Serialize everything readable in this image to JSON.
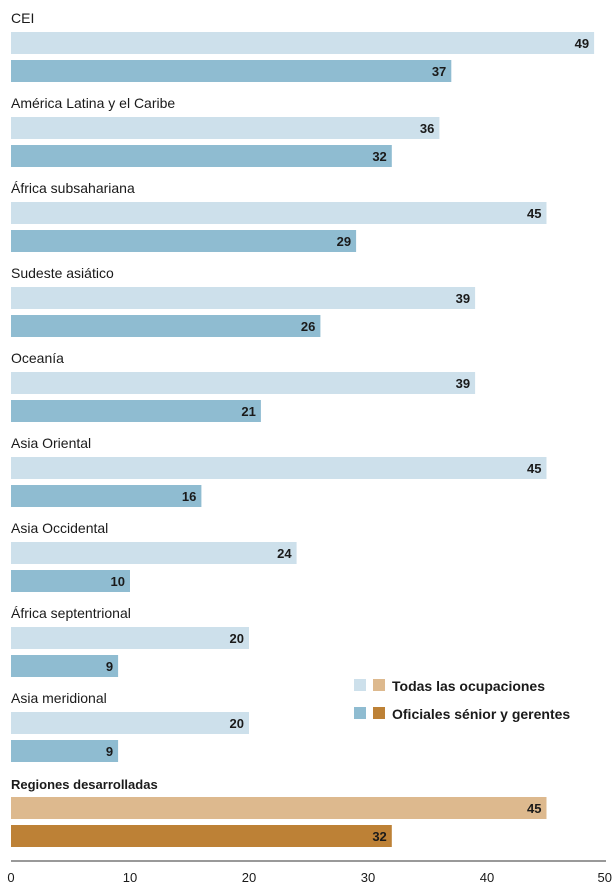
{
  "chart_data": {
    "type": "bar",
    "orientation": "horizontal",
    "categories": [
      "CEI",
      "América Latina y el Caribe",
      "África subsahariana",
      "Sudeste asiático",
      "Oceanía",
      "Asia Oriental",
      "Asia Occidental",
      "África septentrional",
      "Asia meridional",
      "Regiones desarrolladas"
    ],
    "series": [
      {
        "name": "Todas las ocupaciones",
        "values": [
          49,
          36,
          45,
          39,
          39,
          45,
          24,
          20,
          20,
          45
        ]
      },
      {
        "name": "Oficiales sénior y gerentes",
        "values": [
          37,
          32,
          29,
          26,
          21,
          16,
          10,
          9,
          9,
          32
        ]
      }
    ],
    "highlight_category": "Regiones desarrolladas",
    "xlim": [
      0,
      50
    ],
    "xticks": [
      0,
      10,
      20,
      30,
      40,
      50
    ],
    "grid": false,
    "legend_position": "lower-right",
    "colors": {
      "all_occupations": "#cde0eb",
      "senior_officials": "#8fbcd1",
      "all_occupations_highlight": "#ddb98e",
      "senior_officials_highlight": "#bd8136",
      "axis": "#333333"
    }
  }
}
